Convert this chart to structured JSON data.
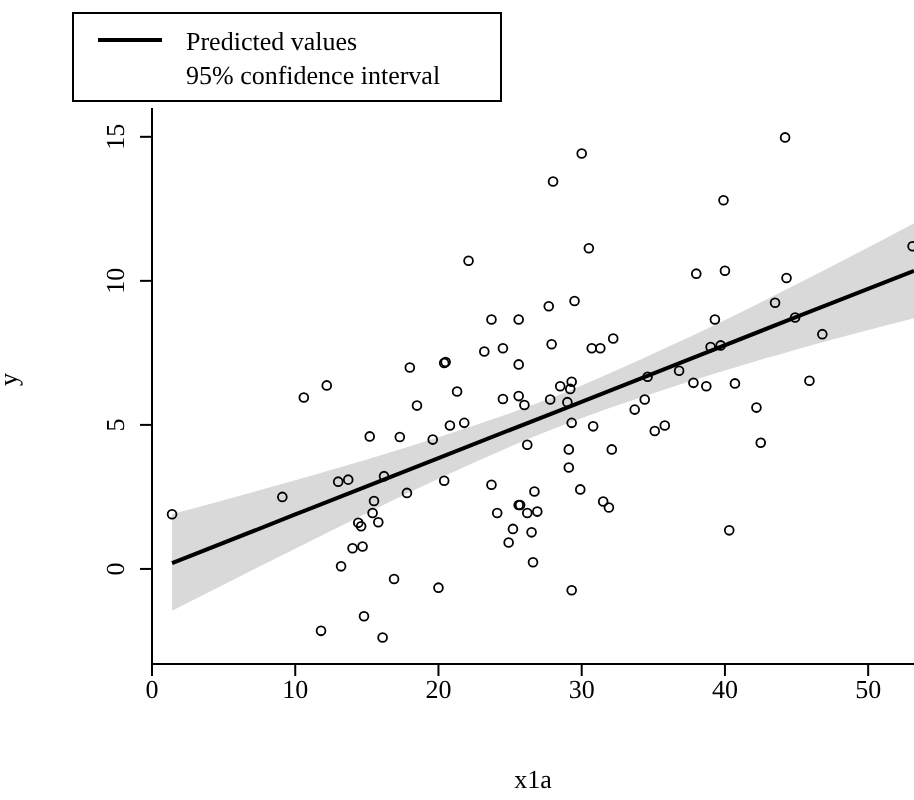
{
  "chart_data": {
    "type": "scatter",
    "xlabel": "x1a",
    "ylabel": "y",
    "xlim": [
      0,
      53.2
    ],
    "ylim": [
      -3.3,
      16
    ],
    "xticks": [
      0,
      10,
      20,
      30,
      40,
      50
    ],
    "yticks": [
      0,
      5,
      10,
      15
    ],
    "legend": "top left",
    "marker": "circle",
    "series": [
      {
        "color": "#000000",
        "x": [
          22.1,
          23.7,
          25.6,
          23.2,
          24.5,
          18.0,
          20.4,
          20.5,
          25.6,
          12.2,
          10.6,
          21.3,
          24.5,
          25.6,
          44.2,
          30.0,
          28.0,
          39.9,
          30.5,
          38.0,
          40.0,
          44.3,
          53.1,
          43.5,
          27.7,
          29.5,
          39.3,
          44.9,
          46.8,
          27.9,
          30.7,
          31.3,
          32.2,
          39.0,
          39.7,
          36.8,
          34.6,
          28.5,
          29.3,
          37.8,
          38.7,
          40.7,
          45.9,
          34.4,
          27.8,
          29.2,
          18.5,
          15.2,
          17.3,
          20.8,
          21.8,
          19.6,
          13.0,
          13.7,
          16.2,
          9.1,
          1.4,
          20.4,
          23.7,
          17.8,
          15.5,
          15.4,
          15.8,
          14.4,
          14.6,
          14.0,
          14.7,
          13.2,
          16.9,
          20.0,
          14.8,
          11.8,
          16.1,
          24.1,
          25.2,
          24.9,
          25.6,
          26.0,
          29.0,
          33.7,
          42.2,
          29.3,
          30.8,
          35.1,
          35.8,
          42.5,
          26.2,
          29.1,
          32.1,
          29.1,
          26.7,
          29.9,
          31.5,
          31.9,
          25.7,
          26.2,
          26.9,
          26.5,
          26.6,
          29.3,
          40.3
        ],
        "values": [
          10.7,
          8.66,
          8.66,
          7.55,
          7.66,
          6.99,
          7.15,
          7.18,
          7.1,
          6.37,
          5.95,
          6.16,
          5.9,
          6.0,
          14.98,
          14.42,
          13.45,
          12.8,
          11.13,
          10.25,
          10.35,
          10.1,
          11.2,
          9.24,
          9.12,
          9.3,
          8.66,
          8.73,
          8.15,
          7.8,
          7.66,
          7.66,
          8.0,
          7.7,
          7.76,
          6.88,
          6.67,
          6.34,
          6.5,
          6.46,
          6.34,
          6.44,
          6.53,
          5.88,
          5.88,
          6.25,
          5.67,
          4.6,
          4.58,
          4.98,
          5.07,
          4.49,
          3.03,
          3.1,
          3.22,
          2.5,
          1.9,
          3.06,
          2.92,
          2.64,
          2.36,
          1.94,
          1.62,
          1.6,
          1.48,
          0.72,
          0.78,
          0.09,
          -0.35,
          -0.65,
          -1.64,
          -2.15,
          -2.38,
          1.94,
          1.39,
          0.92,
          2.22,
          5.69,
          5.79,
          5.53,
          5.6,
          5.07,
          4.95,
          4.79,
          4.98,
          4.38,
          4.31,
          4.15,
          4.15,
          3.52,
          2.69,
          2.76,
          2.34,
          2.13,
          2.22,
          1.94,
          1.99,
          1.27,
          0.23,
          -0.74,
          1.34
        ]
      },
      {
        "type": "line",
        "name": "Predicted values",
        "color": "#000000",
        "marker": "none",
        "line_style": "solid",
        "x": [
          1.4,
          10,
          20,
          28,
          36,
          45,
          53.2
        ],
        "values": [
          0.2,
          1.89,
          3.85,
          5.41,
          6.98,
          8.75,
          10.35
        ],
        "lower": [
          -1.45,
          0.7,
          3.13,
          4.86,
          6.26,
          7.62,
          8.7
        ],
        "upper": [
          1.9,
          3.08,
          4.57,
          5.96,
          7.7,
          9.88,
          12.0
        ]
      }
    ],
    "annotations": [
      "95% confidence interval"
    ]
  }
}
